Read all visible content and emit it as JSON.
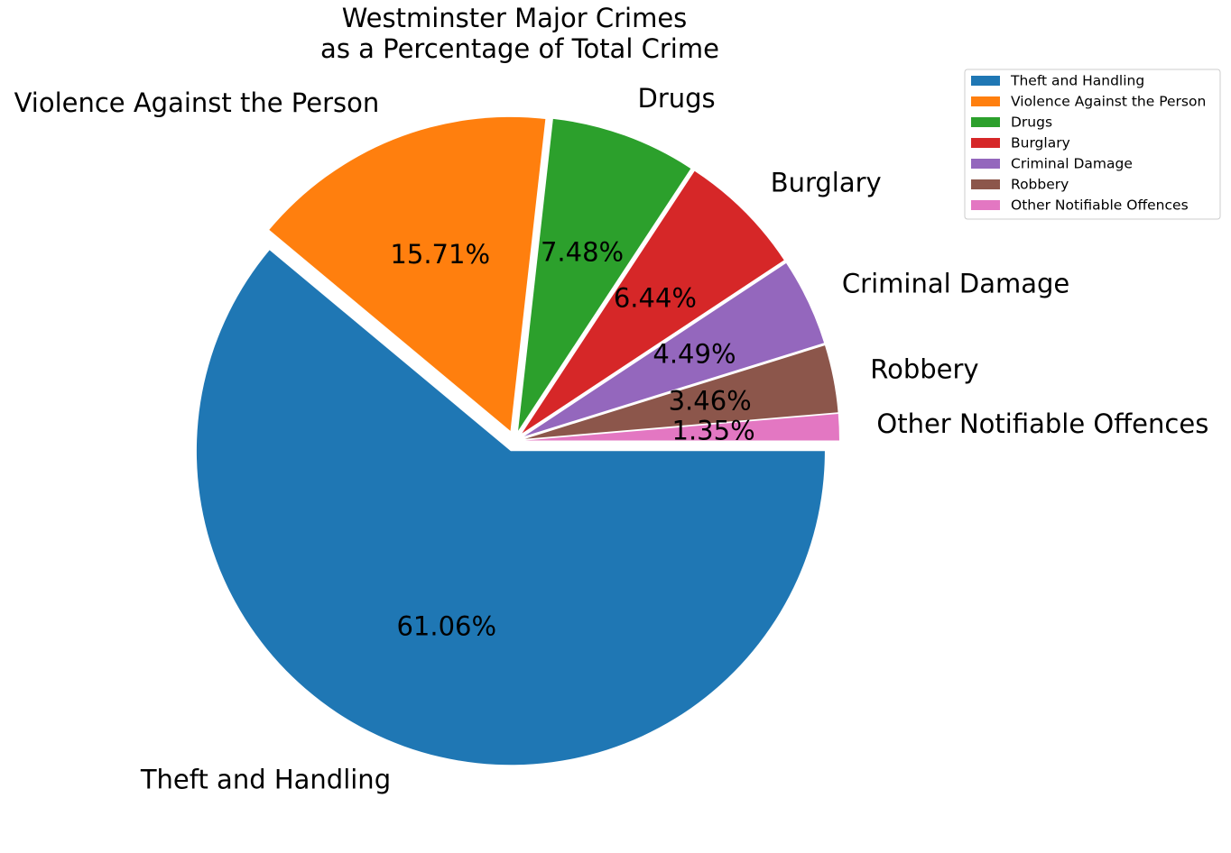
{
  "chart_data": {
    "type": "pie",
    "title_lines": [
      "Westminster Major Crimes",
      "as a Percentage of Total Crime"
    ],
    "categories": [
      "Theft and Handling",
      "Violence Against the Person",
      "Drugs",
      "Burglary",
      "Criminal Damage",
      "Robbery",
      "Other Notifiable Offences"
    ],
    "values": [
      61.06,
      15.71,
      7.48,
      6.44,
      4.49,
      3.46,
      1.35
    ],
    "value_labels": [
      "61.06%",
      "15.71%",
      "7.48%",
      "6.44%",
      "4.49%",
      "3.46%",
      "1.35%"
    ],
    "colors": [
      "#1f77b4",
      "#ff7f0e",
      "#2ca02c",
      "#d62728",
      "#9467bd",
      "#8c564b",
      "#e377c2"
    ],
    "exploded": [
      true,
      true,
      true,
      true,
      true,
      true,
      true
    ],
    "start_angle": "0 degrees (3 o'clock)",
    "direction": "clockwise",
    "legend": {
      "placement": "top-right",
      "entries": [
        "Theft and Handling",
        "Violence Against the Person",
        "Drugs",
        "Burglary",
        "Criminal Damage",
        "Robbery",
        "Other Notifiable Offences"
      ]
    }
  }
}
